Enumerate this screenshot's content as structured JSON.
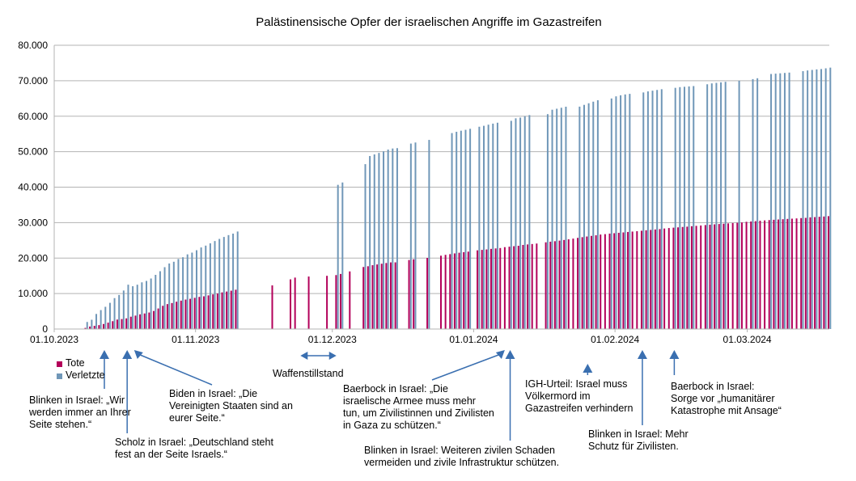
{
  "chart_data": {
    "type": "bar",
    "title": "Palästinensische Opfer der israelischen Angriffe im Gazastreifen",
    "xlabel": "",
    "ylabel": "",
    "x_range": [
      "2023-10-01",
      "2024-03-19"
    ],
    "ylim": [
      0,
      80000
    ],
    "y_ticks": [
      "0",
      "10.000",
      "20.000",
      "30.000",
      "40.000",
      "50.000",
      "60.000",
      "70.000",
      "80.000"
    ],
    "x_ticks": [
      {
        "date": "2023-10-01",
        "label": "01.10.2023"
      },
      {
        "date": "2023-11-01",
        "label": "01.11.2023"
      },
      {
        "date": "2023-12-01",
        "label": "01.12.2023"
      },
      {
        "date": "2024-01-01",
        "label": "01.01.2024"
      },
      {
        "date": "2024-02-01",
        "label": "01.02.2024"
      },
      {
        "date": "2024-03-01",
        "label": "01.03.2024"
      }
    ],
    "grid": true,
    "legend_position": "bottom-left",
    "series": [
      {
        "name": "Tote",
        "color": "#b3005a"
      },
      {
        "name": "Verletzte",
        "color": "#7097b8"
      }
    ],
    "points": [
      {
        "date": "2023-10-08",
        "tote": 313,
        "verletzte": 1990
      },
      {
        "date": "2023-10-09",
        "tote": 704,
        "verletzte": 2616
      },
      {
        "date": "2023-10-10",
        "tote": 900,
        "verletzte": 4250
      },
      {
        "date": "2023-10-11",
        "tote": 1100,
        "verletzte": 5339
      },
      {
        "date": "2023-10-12",
        "tote": 1417,
        "verletzte": 6268
      },
      {
        "date": "2023-10-13",
        "tote": 1799,
        "verletzte": 7388
      },
      {
        "date": "2023-10-14",
        "tote": 2215,
        "verletzte": 8714
      },
      {
        "date": "2023-10-15",
        "tote": 2670,
        "verletzte": 9600
      },
      {
        "date": "2023-10-16",
        "tote": 2808,
        "verletzte": 10859
      },
      {
        "date": "2023-10-17",
        "tote": 3000,
        "verletzte": 12500
      },
      {
        "date": "2023-10-18",
        "tote": 3478,
        "verletzte": 12065
      },
      {
        "date": "2023-10-19",
        "tote": 3785,
        "verletzte": 12493
      },
      {
        "date": "2023-10-20",
        "tote": 4137,
        "verletzte": 13162
      },
      {
        "date": "2023-10-21",
        "tote": 4385,
        "verletzte": 13561
      },
      {
        "date": "2023-10-22",
        "tote": 4651,
        "verletzte": 14245
      },
      {
        "date": "2023-10-23",
        "tote": 5087,
        "verletzte": 15273
      },
      {
        "date": "2023-10-24",
        "tote": 5791,
        "verletzte": 16297
      },
      {
        "date": "2023-10-25",
        "tote": 6546,
        "verletzte": 17439
      },
      {
        "date": "2023-10-26",
        "tote": 7028,
        "verletzte": 18484
      },
      {
        "date": "2023-10-27",
        "tote": 7326,
        "verletzte": 18967
      },
      {
        "date": "2023-10-28",
        "tote": 7703,
        "verletzte": 19743
      },
      {
        "date": "2023-10-29",
        "tote": 8005,
        "verletzte": 20242
      },
      {
        "date": "2023-10-30",
        "tote": 8306,
        "verletzte": 21048
      },
      {
        "date": "2023-10-31",
        "tote": 8525,
        "verletzte": 21543
      },
      {
        "date": "2023-11-01",
        "tote": 8796,
        "verletzte": 22219
      },
      {
        "date": "2023-11-02",
        "tote": 9061,
        "verletzte": 23000
      },
      {
        "date": "2023-11-03",
        "tote": 9227,
        "verletzte": 23516
      },
      {
        "date": "2023-11-04",
        "tote": 9488,
        "verletzte": 24158
      },
      {
        "date": "2023-11-05",
        "tote": 9770,
        "verletzte": 24808
      },
      {
        "date": "2023-11-06",
        "tote": 10022,
        "verletzte": 25408
      },
      {
        "date": "2023-11-07",
        "tote": 10328,
        "verletzte": 25956
      },
      {
        "date": "2023-11-08",
        "tote": 10569,
        "verletzte": 26475
      },
      {
        "date": "2023-11-09",
        "tote": 10812,
        "verletzte": 26900
      },
      {
        "date": "2023-11-10",
        "tote": 11078,
        "verletzte": 27490
      },
      {
        "date": "2023-11-18",
        "tote": 12300,
        "verletzte": null
      },
      {
        "date": "2023-11-22",
        "tote": 14000,
        "verletzte": null
      },
      {
        "date": "2023-11-23",
        "tote": 14500,
        "verletzte": null
      },
      {
        "date": "2023-11-26",
        "tote": 14800,
        "verletzte": null
      },
      {
        "date": "2023-11-30",
        "tote": 15000,
        "verletzte": null
      },
      {
        "date": "2023-12-02",
        "tote": 15207,
        "verletzte": 40652
      },
      {
        "date": "2023-12-03",
        "tote": 15523,
        "verletzte": 41316
      },
      {
        "date": "2023-12-05",
        "tote": 16248,
        "verletzte": null
      },
      {
        "date": "2023-12-08",
        "tote": 17487,
        "verletzte": 46480
      },
      {
        "date": "2023-12-09",
        "tote": 17700,
        "verletzte": 48780
      },
      {
        "date": "2023-12-10",
        "tote": 17997,
        "verletzte": 49229
      },
      {
        "date": "2023-12-11",
        "tote": 18205,
        "verletzte": 49645
      },
      {
        "date": "2023-12-12",
        "tote": 18412,
        "verletzte": 50100
      },
      {
        "date": "2023-12-13",
        "tote": 18608,
        "verletzte": 50594
      },
      {
        "date": "2023-12-14",
        "tote": 18787,
        "verletzte": 50897
      },
      {
        "date": "2023-12-15",
        "tote": 18800,
        "verletzte": 51000
      },
      {
        "date": "2023-12-18",
        "tote": 19453,
        "verletzte": 52286
      },
      {
        "date": "2023-12-19",
        "tote": 19667,
        "verletzte": 52586
      },
      {
        "date": "2023-12-22",
        "tote": 20057,
        "verletzte": 53320
      },
      {
        "date": "2023-12-25",
        "tote": 20674,
        "verletzte": null
      },
      {
        "date": "2023-12-26",
        "tote": 20915,
        "verletzte": null
      },
      {
        "date": "2023-12-27",
        "tote": 21110,
        "verletzte": 55243
      },
      {
        "date": "2023-12-28",
        "tote": 21320,
        "verletzte": 55603
      },
      {
        "date": "2023-12-29",
        "tote": 21507,
        "verletzte": 55915
      },
      {
        "date": "2023-12-30",
        "tote": 21672,
        "verletzte": 56165
      },
      {
        "date": "2023-12-31",
        "tote": 21822,
        "verletzte": 56451
      },
      {
        "date": "2024-01-02",
        "tote": 22185,
        "verletzte": 57035
      },
      {
        "date": "2024-01-03",
        "tote": 22313,
        "verletzte": 57296
      },
      {
        "date": "2024-01-04",
        "tote": 22438,
        "verletzte": 57614
      },
      {
        "date": "2024-01-05",
        "tote": 22600,
        "verletzte": 57910
      },
      {
        "date": "2024-01-06",
        "tote": 22722,
        "verletzte": 58166
      },
      {
        "date": "2024-01-07",
        "tote": 22835,
        "verletzte": null
      },
      {
        "date": "2024-01-08",
        "tote": 23084,
        "verletzte": null
      },
      {
        "date": "2024-01-09",
        "tote": 23210,
        "verletzte": 58700
      },
      {
        "date": "2024-01-10",
        "tote": 23357,
        "verletzte": 59410
      },
      {
        "date": "2024-01-11",
        "tote": 23469,
        "verletzte": 59604
      },
      {
        "date": "2024-01-12",
        "tote": 23708,
        "verletzte": 60005
      },
      {
        "date": "2024-01-13",
        "tote": 23843,
        "verletzte": 60317
      },
      {
        "date": "2024-01-14",
        "tote": 23968,
        "verletzte": null
      },
      {
        "date": "2024-01-15",
        "tote": 24100,
        "verletzte": null
      },
      {
        "date": "2024-01-17",
        "tote": 24448,
        "verletzte": 60580
      },
      {
        "date": "2024-01-18",
        "tote": 24620,
        "verletzte": 61830
      },
      {
        "date": "2024-01-19",
        "tote": 24762,
        "verletzte": 62108
      },
      {
        "date": "2024-01-20",
        "tote": 24927,
        "verletzte": 62388
      },
      {
        "date": "2024-01-21",
        "tote": 25105,
        "verletzte": 62681
      },
      {
        "date": "2024-01-22",
        "tote": 25295,
        "verletzte": null
      },
      {
        "date": "2024-01-23",
        "tote": 25490,
        "verletzte": null
      },
      {
        "date": "2024-01-24",
        "tote": 25700,
        "verletzte": 62700
      },
      {
        "date": "2024-01-25",
        "tote": 25900,
        "verletzte": 63200
      },
      {
        "date": "2024-01-26",
        "tote": 26083,
        "verletzte": 63650
      },
      {
        "date": "2024-01-27",
        "tote": 26257,
        "verletzte": 64100
      },
      {
        "date": "2024-01-28",
        "tote": 26422,
        "verletzte": 64500
      },
      {
        "date": "2024-01-29",
        "tote": 26637,
        "verletzte": null
      },
      {
        "date": "2024-01-30",
        "tote": 26751,
        "verletzte": null
      },
      {
        "date": "2024-01-31",
        "tote": 26900,
        "verletzte": 65000
      },
      {
        "date": "2024-02-01",
        "tote": 27019,
        "verletzte": 65600
      },
      {
        "date": "2024-02-02",
        "tote": 27131,
        "verletzte": 65900
      },
      {
        "date": "2024-02-03",
        "tote": 27238,
        "verletzte": 66139
      },
      {
        "date": "2024-02-04",
        "tote": 27365,
        "verletzte": 66300
      },
      {
        "date": "2024-02-05",
        "tote": 27478,
        "verletzte": null
      },
      {
        "date": "2024-02-06",
        "tote": 27585,
        "verletzte": null
      },
      {
        "date": "2024-02-07",
        "tote": 27708,
        "verletzte": 66700
      },
      {
        "date": "2024-02-08",
        "tote": 27840,
        "verletzte": 67000
      },
      {
        "date": "2024-02-09",
        "tote": 27947,
        "verletzte": 67200
      },
      {
        "date": "2024-02-10",
        "tote": 28064,
        "verletzte": 67400
      },
      {
        "date": "2024-02-11",
        "tote": 28176,
        "verletzte": 67611
      },
      {
        "date": "2024-02-12",
        "tote": 28340,
        "verletzte": null
      },
      {
        "date": "2024-02-13",
        "tote": 28473,
        "verletzte": null
      },
      {
        "date": "2024-02-14",
        "tote": 28576,
        "verletzte": 68000
      },
      {
        "date": "2024-02-15",
        "tote": 28663,
        "verletzte": 68200
      },
      {
        "date": "2024-02-16",
        "tote": 28775,
        "verletzte": 68300
      },
      {
        "date": "2024-02-17",
        "tote": 28858,
        "verletzte": 68400
      },
      {
        "date": "2024-02-18",
        "tote": 28985,
        "verletzte": 68500
      },
      {
        "date": "2024-02-19",
        "tote": 29092,
        "verletzte": null
      },
      {
        "date": "2024-02-20",
        "tote": 29195,
        "verletzte": null
      },
      {
        "date": "2024-02-21",
        "tote": 29313,
        "verletzte": 69000
      },
      {
        "date": "2024-02-22",
        "tote": 29410,
        "verletzte": 69250
      },
      {
        "date": "2024-02-23",
        "tote": 29514,
        "verletzte": 69400
      },
      {
        "date": "2024-02-24",
        "tote": 29606,
        "verletzte": 69550
      },
      {
        "date": "2024-02-25",
        "tote": 29692,
        "verletzte": 69700
      },
      {
        "date": "2024-02-26",
        "tote": 29782,
        "verletzte": null
      },
      {
        "date": "2024-02-27",
        "tote": 29878,
        "verletzte": null
      },
      {
        "date": "2024-02-28",
        "tote": 29954,
        "verletzte": 70000
      },
      {
        "date": "2024-02-29",
        "tote": 30035,
        "verletzte": null
      },
      {
        "date": "2024-03-01",
        "tote": 30228,
        "verletzte": null
      },
      {
        "date": "2024-03-02",
        "tote": 30320,
        "verletzte": 70450
      },
      {
        "date": "2024-03-03",
        "tote": 30410,
        "verletzte": 70700
      },
      {
        "date": "2024-03-04",
        "tote": 30534,
        "verletzte": null
      },
      {
        "date": "2024-03-05",
        "tote": 30631,
        "verletzte": null
      },
      {
        "date": "2024-03-06",
        "tote": 30717,
        "verletzte": 71900
      },
      {
        "date": "2024-03-07",
        "tote": 30800,
        "verletzte": 72000
      },
      {
        "date": "2024-03-08",
        "tote": 30878,
        "verletzte": 72100
      },
      {
        "date": "2024-03-09",
        "tote": 30960,
        "verletzte": 72200
      },
      {
        "date": "2024-03-10",
        "tote": 31045,
        "verletzte": 72300
      },
      {
        "date": "2024-03-11",
        "tote": 31112,
        "verletzte": null
      },
      {
        "date": "2024-03-12",
        "tote": 31184,
        "verletzte": null
      },
      {
        "date": "2024-03-13",
        "tote": 31272,
        "verletzte": 72700
      },
      {
        "date": "2024-03-14",
        "tote": 31341,
        "verletzte": 72900
      },
      {
        "date": "2024-03-15",
        "tote": 31490,
        "verletzte": 73050
      },
      {
        "date": "2024-03-16",
        "tote": 31553,
        "verletzte": 73200
      },
      {
        "date": "2024-03-17",
        "tote": 31645,
        "verletzte": 73300
      },
      {
        "date": "2024-03-18",
        "tote": 31726,
        "verletzte": 73500
      },
      {
        "date": "2024-03-19",
        "tote": 31819,
        "verletzte": 73700
      }
    ],
    "annotations": [
      {
        "text": "Blinken in Israel: „Wir\nwerden immer an Ihrer\nSeite stehen.“",
        "date": "2023-10-12"
      },
      {
        "text": "Scholz in Israel: „Deutschland steht\nfest an der Seite Israels.“",
        "date": "2023-10-17"
      },
      {
        "text": "Biden in Israel: „Die\nVereinigten Staaten sind an\neurer Seite.“",
        "date": "2023-10-18"
      },
      {
        "text": "Waffenstillstand",
        "date_from": "2023-11-24",
        "date_to": "2023-12-01"
      },
      {
        "text": "Baerbock in Israel: „Die\nisraelische Armee muss mehr\ntun, um Zivilistinnen und Zivilisten\nin Gaza zu schützen.“",
        "date": "2024-01-08"
      },
      {
        "text": "Blinken in Israel: Weiteren zivilen Schaden\nvermeiden und zivile Infrastruktur schützen.",
        "date": "2024-01-09"
      },
      {
        "text": "IGH-Urteil: Israel muss\nVölkermord im\nGazastreifen verhindern",
        "date": "2024-01-26"
      },
      {
        "text": "Blinken in Israel: Mehr\nSchutz für Zivilisten.",
        "date": "2024-02-07"
      },
      {
        "text": "Baerbock in Israel:\nSorge vor „humanitärer\nKatastrophe mit Ansage“",
        "date": "2024-02-14"
      }
    ]
  }
}
